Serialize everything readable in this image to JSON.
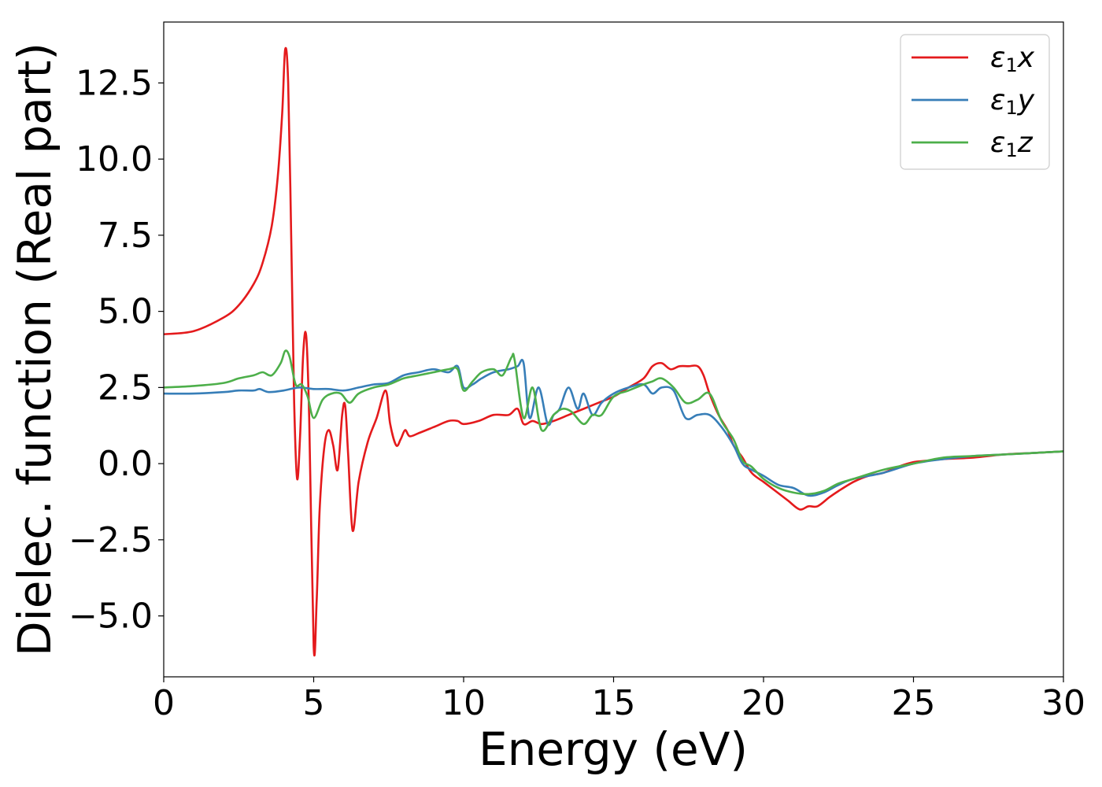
{
  "chart_data": {
    "type": "line",
    "xlabel": "Energy (eV)",
    "ylabel": "Dielec. function (Real part)",
    "xlim": [
      0,
      30
    ],
    "ylim": [
      -7,
      14.5
    ],
    "xticks": [
      0,
      5,
      10,
      15,
      20,
      25,
      30
    ],
    "xtick_labels": [
      "0",
      "5",
      "10",
      "15",
      "20",
      "25",
      "30"
    ],
    "yticks": [
      -5,
      -2.5,
      0,
      2.5,
      5,
      7.5,
      10,
      12.5
    ],
    "ytick_labels": [
      "−5.0",
      "−2.5",
      "0.0",
      "2.5",
      "5.0",
      "7.5",
      "10.0",
      "12.5"
    ],
    "grid": false,
    "legend_position": "top-right",
    "series": [
      {
        "name": "ε1x",
        "legend_base": "ε",
        "legend_sub": "1",
        "legend_var": "x",
        "color": "#e41a1c",
        "x": [
          0,
          1,
          2,
          2.5,
          3,
          3.3,
          3.6,
          3.8,
          3.95,
          4.05,
          4.15,
          4.25,
          4.35,
          4.45,
          4.55,
          4.65,
          4.75,
          4.85,
          5.0,
          5.1,
          5.2,
          5.35,
          5.5,
          5.65,
          5.8,
          5.95,
          6.05,
          6.15,
          6.3,
          6.5,
          6.8,
          7.1,
          7.4,
          7.55,
          7.75,
          7.9,
          8.05,
          8.2,
          8.5,
          9.0,
          9.5,
          9.8,
          10.0,
          10.5,
          11.0,
          11.5,
          11.8,
          12.0,
          12.3,
          12.6,
          13.0,
          13.5,
          14.0,
          14.5,
          15.0,
          15.5,
          16.0,
          16.3,
          16.6,
          16.9,
          17.2,
          17.5,
          17.8,
          18.0,
          18.2,
          18.5,
          18.8,
          19.0,
          19.3,
          19.6,
          20.0,
          20.4,
          20.8,
          21.2,
          21.5,
          21.8,
          22.2,
          22.5,
          23.0,
          23.5,
          24.0,
          24.5,
          25.0,
          25.5,
          26.0,
          27.0,
          28.0,
          29.0,
          30.0
        ],
        "y": [
          4.25,
          4.35,
          4.8,
          5.2,
          5.9,
          6.6,
          7.8,
          9.4,
          11.5,
          13.6,
          12.5,
          7.5,
          2.0,
          -0.5,
          1.0,
          3.6,
          4.2,
          1.5,
          -6.0,
          -4.5,
          -1.5,
          0.5,
          1.1,
          0.6,
          -0.2,
          1.6,
          1.9,
          0.3,
          -2.2,
          -0.6,
          0.7,
          1.5,
          2.4,
          1.3,
          0.6,
          0.8,
          1.1,
          0.9,
          1.0,
          1.2,
          1.4,
          1.4,
          1.3,
          1.4,
          1.6,
          1.6,
          1.8,
          1.3,
          1.4,
          1.3,
          1.4,
          1.6,
          1.8,
          2.0,
          2.2,
          2.5,
          2.8,
          3.2,
          3.3,
          3.1,
          3.2,
          3.2,
          3.2,
          2.9,
          2.3,
          1.6,
          1.1,
          0.6,
          0.2,
          -0.3,
          -0.6,
          -0.9,
          -1.2,
          -1.5,
          -1.4,
          -1.4,
          -1.1,
          -0.9,
          -0.6,
          -0.4,
          -0.3,
          -0.1,
          0.05,
          0.1,
          0.15,
          0.2,
          0.3,
          0.35,
          0.4
        ]
      },
      {
        "name": "ε1y",
        "legend_base": "ε",
        "legend_sub": "1",
        "legend_var": "y",
        "color": "#377eb8",
        "x": [
          0,
          1,
          2,
          2.5,
          3,
          3.2,
          3.5,
          4.0,
          4.5,
          5.0,
          5.5,
          6.0,
          6.5,
          7.0,
          7.5,
          8.0,
          8.5,
          9.0,
          9.5,
          9.8,
          10.0,
          10.3,
          10.6,
          11.0,
          11.5,
          11.8,
          12.0,
          12.2,
          12.5,
          12.8,
          13.0,
          13.2,
          13.5,
          13.8,
          14.0,
          14.3,
          14.6,
          15.0,
          15.5,
          16.0,
          16.3,
          16.6,
          17.0,
          17.4,
          17.8,
          18.2,
          18.6,
          19.0,
          19.3,
          19.6,
          20.0,
          20.5,
          21.0,
          21.5,
          22.0,
          22.5,
          23.0,
          24.0,
          25.0,
          26.0,
          27.0,
          28.0,
          29.0,
          30.0
        ],
        "y": [
          2.3,
          2.3,
          2.35,
          2.4,
          2.4,
          2.45,
          2.35,
          2.4,
          2.5,
          2.45,
          2.45,
          2.4,
          2.5,
          2.6,
          2.65,
          2.9,
          3.0,
          3.1,
          3.0,
          3.2,
          2.5,
          2.6,
          2.8,
          3.0,
          3.1,
          3.2,
          3.3,
          1.5,
          2.5,
          1.3,
          1.6,
          1.8,
          2.5,
          1.8,
          2.3,
          1.6,
          2.0,
          2.3,
          2.5,
          2.6,
          2.3,
          2.5,
          2.4,
          1.5,
          1.6,
          1.6,
          1.2,
          0.6,
          0.0,
          -0.2,
          -0.4,
          -0.7,
          -0.8,
          -1.05,
          -0.95,
          -0.7,
          -0.5,
          -0.3,
          0.0,
          0.15,
          0.25,
          0.3,
          0.35,
          0.4
        ]
      },
      {
        "name": "ε1z",
        "legend_base": "ε",
        "legend_sub": "1",
        "legend_var": "z",
        "color": "#4daf4a",
        "x": [
          0,
          1,
          2,
          2.5,
          3,
          3.3,
          3.6,
          3.9,
          4.05,
          4.2,
          4.4,
          4.6,
          4.8,
          5.0,
          5.3,
          5.6,
          5.9,
          6.2,
          6.5,
          7.0,
          7.5,
          8.0,
          8.5,
          9.0,
          9.5,
          9.8,
          10.0,
          10.3,
          10.6,
          11.0,
          11.3,
          11.6,
          11.7,
          12.0,
          12.3,
          12.6,
          13.0,
          13.3,
          13.6,
          14.0,
          14.3,
          14.6,
          15.0,
          15.5,
          16.0,
          16.3,
          16.6,
          17.0,
          17.4,
          17.8,
          18.2,
          18.6,
          19.0,
          19.3,
          19.6,
          20.0,
          20.5,
          21.0,
          21.5,
          22.0,
          22.5,
          23.0,
          24.0,
          25.0,
          26.0,
          27.0,
          28.0,
          29.0,
          30.0
        ],
        "y": [
          2.5,
          2.55,
          2.65,
          2.8,
          2.9,
          3.0,
          2.9,
          3.3,
          3.7,
          3.5,
          2.6,
          2.6,
          2.2,
          1.5,
          2.1,
          2.3,
          2.3,
          2.0,
          2.3,
          2.5,
          2.6,
          2.8,
          2.9,
          3.0,
          3.1,
          3.1,
          2.4,
          2.7,
          3.0,
          3.1,
          2.9,
          3.5,
          3.4,
          1.5,
          2.5,
          1.1,
          1.6,
          1.8,
          1.7,
          1.3,
          1.6,
          1.6,
          2.2,
          2.4,
          2.6,
          2.7,
          2.8,
          2.5,
          2.0,
          2.1,
          2.3,
          1.4,
          0.8,
          0.1,
          -0.1,
          -0.5,
          -0.8,
          -0.95,
          -1.0,
          -0.9,
          -0.65,
          -0.5,
          -0.2,
          0.0,
          0.2,
          0.25,
          0.3,
          0.35,
          0.4
        ]
      }
    ]
  }
}
